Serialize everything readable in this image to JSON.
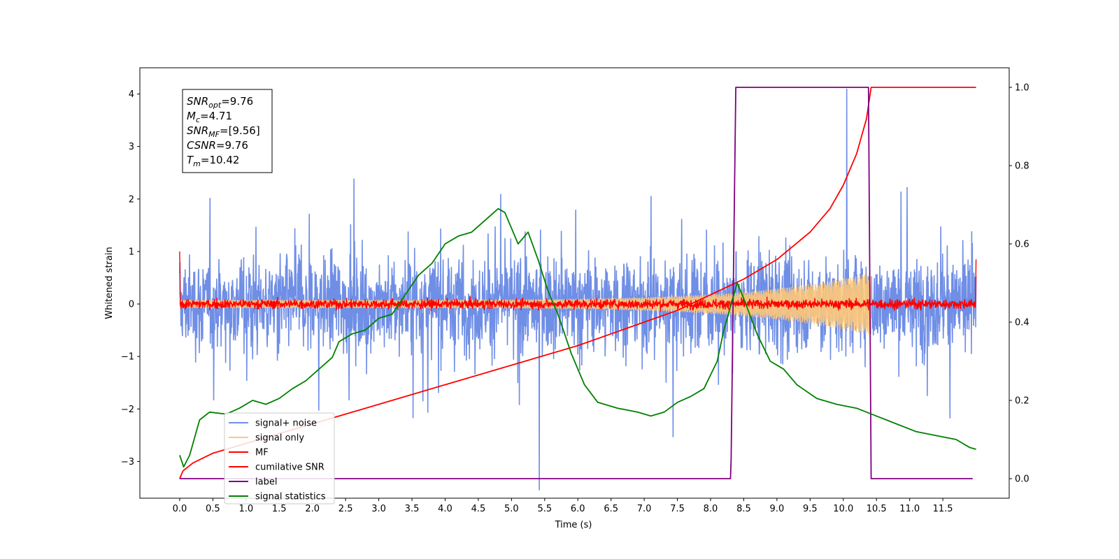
{
  "chart_data": {
    "type": "line",
    "xlabel": "Time (s)",
    "ylabel": "Whitened strain",
    "xlim": [
      -0.6,
      12.5
    ],
    "ylim": [
      -3.7,
      4.5
    ],
    "y2lim": [
      -0.05,
      1.05
    ],
    "x_ticks": [
      "0.0",
      "0.5",
      "1.0",
      "1.5",
      "2.0",
      "2.5",
      "3.0",
      "3.5",
      "4.0",
      "4.5",
      "5.0",
      "5.5",
      "6.0",
      "6.5",
      "7.0",
      "7.5",
      "8.0",
      "8.5",
      "9.0",
      "9.5",
      "10.0",
      "10.5",
      "11.0",
      "11.5"
    ],
    "y_ticks": [
      "−3",
      "−2",
      "−1",
      "0",
      "1",
      "2",
      "3",
      "4"
    ],
    "y2_ticks": [
      "0.0",
      "0.2",
      "0.4",
      "0.6",
      "0.8",
      "1.0"
    ],
    "grid": false,
    "legend_position": "lower-left",
    "info_box": {
      "lines": [
        {
          "base": "SNR",
          "sub": "opt",
          "value": "=9.76"
        },
        {
          "base": "M",
          "sub": "c",
          "value": "=4.71"
        },
        {
          "base": "SNR",
          "sub": "MF",
          "value": "=[9.56]"
        },
        {
          "base": "CSNR",
          "sub": "",
          "value": "=9.76"
        },
        {
          "base": "T",
          "sub": "m",
          "value": "=10.42"
        }
      ]
    },
    "series": [
      {
        "name": "signal+ noise",
        "axis": "left",
        "color": "#6f8ee6",
        "kind": "noise",
        "t_start": 0.0,
        "t_end": 12.0,
        "typical_amplitude": 1.5,
        "peak_max": 4.1,
        "peak_min": -3.55
      },
      {
        "name": "signal only",
        "axis": "left",
        "color": "#ffc878",
        "kind": "chirp",
        "t_start": 0.0,
        "t_end": 10.42,
        "amplitude_start": 0.08,
        "amplitude_end": 0.6
      },
      {
        "name": "MF",
        "axis": "left",
        "color": "#ff0000",
        "kind": "noise",
        "t_start": 0.0,
        "t_end": 12.0,
        "typical_amplitude": 0.12,
        "start_value": 1.0,
        "end_value": 0.85
      },
      {
        "name": "cumilative SNR",
        "axis": "right",
        "color": "#ff0000",
        "x": [
          0.0,
          0.05,
          0.2,
          0.5,
          1.0,
          1.5,
          2.0,
          2.5,
          3.0,
          3.5,
          4.0,
          4.5,
          5.0,
          5.5,
          6.0,
          6.5,
          7.0,
          7.5,
          8.0,
          8.5,
          9.0,
          9.5,
          9.8,
          10.0,
          10.2,
          10.35,
          10.42,
          10.5,
          11.0,
          11.5,
          12.0
        ],
        "y": [
          0.0,
          0.02,
          0.04,
          0.065,
          0.09,
          0.115,
          0.14,
          0.165,
          0.19,
          0.215,
          0.24,
          0.265,
          0.29,
          0.315,
          0.34,
          0.37,
          0.4,
          0.43,
          0.47,
          0.51,
          0.56,
          0.63,
          0.69,
          0.75,
          0.83,
          0.92,
          1.0,
          1.0,
          1.0,
          1.0,
          1.0
        ]
      },
      {
        "name": "label",
        "axis": "right",
        "color": "#800080",
        "x": [
          0.0,
          8.3,
          8.31,
          8.38,
          10.38,
          10.4,
          10.42,
          10.45,
          11.95
        ],
        "y": [
          0.0,
          0.0,
          0.05,
          1.0,
          1.0,
          0.5,
          0.0,
          0.0,
          0.0
        ]
      },
      {
        "name": "signal statistics",
        "axis": "right",
        "color": "#008000",
        "x": [
          0.0,
          0.06,
          0.15,
          0.3,
          0.45,
          0.7,
          0.9,
          1.1,
          1.3,
          1.5,
          1.7,
          1.9,
          2.1,
          2.3,
          2.4,
          2.6,
          2.8,
          3.0,
          3.2,
          3.4,
          3.6,
          3.8,
          4.0,
          4.2,
          4.4,
          4.6,
          4.8,
          4.9,
          5.1,
          5.25,
          5.4,
          5.55,
          5.7,
          5.9,
          6.1,
          6.3,
          6.6,
          6.9,
          7.1,
          7.3,
          7.5,
          7.7,
          7.9,
          8.1,
          8.2,
          8.3,
          8.4,
          8.5,
          8.7,
          8.9,
          9.1,
          9.3,
          9.6,
          9.9,
          10.2,
          10.5,
          10.8,
          11.1,
          11.4,
          11.7,
          11.9,
          12.0
        ],
        "y": [
          0.06,
          0.03,
          0.06,
          0.15,
          0.17,
          0.165,
          0.18,
          0.2,
          0.19,
          0.205,
          0.23,
          0.25,
          0.28,
          0.31,
          0.35,
          0.37,
          0.38,
          0.41,
          0.42,
          0.47,
          0.52,
          0.55,
          0.6,
          0.62,
          0.63,
          0.66,
          0.69,
          0.68,
          0.6,
          0.63,
          0.56,
          0.48,
          0.42,
          0.32,
          0.24,
          0.195,
          0.18,
          0.17,
          0.16,
          0.17,
          0.195,
          0.21,
          0.23,
          0.3,
          0.38,
          0.44,
          0.5,
          0.46,
          0.37,
          0.3,
          0.28,
          0.24,
          0.205,
          0.19,
          0.18,
          0.16,
          0.14,
          0.12,
          0.11,
          0.1,
          0.08,
          0.075
        ]
      }
    ]
  }
}
